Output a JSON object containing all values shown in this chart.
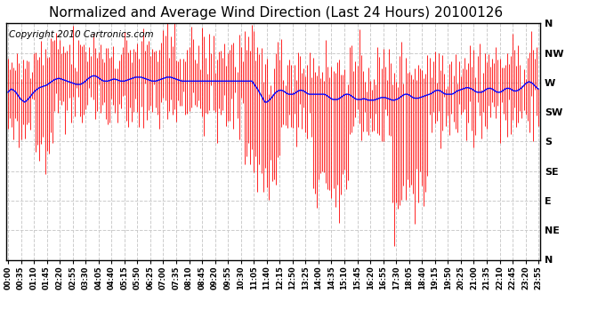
{
  "title": "Normalized and Average Wind Direction (Last 24 Hours) 20100126",
  "copyright": "Copyright 2010 Cartronics.com",
  "background_color": "#ffffff",
  "plot_bg_color": "#ffffff",
  "grid_color": "#cccccc",
  "bar_color": "#ff0000",
  "line_color": "#0000ff",
  "ytick_labels": [
    "N",
    "NW",
    "W",
    "SW",
    "S",
    "SE",
    "E",
    "NE",
    "N"
  ],
  "ytick_values": [
    360,
    315,
    270,
    225,
    180,
    135,
    90,
    45,
    0
  ],
  "ylim": [
    0,
    360
  ],
  "title_fontsize": 11,
  "copyright_fontsize": 7.5,
  "xtick_fontsize": 6,
  "ytick_fontsize": 8,
  "avg_wind_data": [
    255,
    258,
    260,
    258,
    256,
    252,
    248,
    244,
    242,
    240,
    242,
    245,
    248,
    252,
    255,
    258,
    260,
    262,
    263,
    264,
    265,
    266,
    268,
    270,
    272,
    274,
    275,
    276,
    276,
    275,
    274,
    273,
    272,
    271,
    270,
    269,
    268,
    267,
    267,
    267,
    268,
    270,
    272,
    275,
    277,
    279,
    280,
    280,
    279,
    277,
    275,
    273,
    272,
    272,
    272,
    273,
    274,
    275,
    275,
    274,
    273,
    272,
    272,
    272,
    273,
    274,
    275,
    276,
    277,
    278,
    278,
    278,
    278,
    277,
    276,
    275,
    274,
    273,
    272,
    272,
    272,
    273,
    274,
    275,
    276,
    277,
    278,
    278,
    278,
    277,
    276,
    275,
    274,
    273,
    272,
    272,
    272,
    272,
    272,
    272,
    272,
    272,
    272,
    272,
    272,
    272,
    272,
    272,
    272,
    272,
    272,
    272,
    272,
    272,
    272,
    272,
    272,
    272,
    272,
    272,
    272,
    272,
    272,
    272,
    272,
    272,
    272,
    272,
    272,
    272,
    272,
    272,
    272,
    268,
    264,
    260,
    255,
    250,
    245,
    240,
    240,
    242,
    245,
    248,
    252,
    255,
    257,
    258,
    258,
    257,
    255,
    253,
    252,
    252,
    252,
    253,
    255,
    257,
    258,
    258,
    257,
    255,
    253,
    252,
    252,
    252,
    252,
    252,
    252,
    252,
    252,
    252,
    251,
    249,
    247,
    245,
    244,
    244,
    244,
    245,
    247,
    249,
    251,
    252,
    252,
    251,
    249,
    247,
    245,
    244,
    244,
    244,
    245,
    245,
    244,
    243,
    243,
    243,
    243,
    244,
    245,
    246,
    247,
    247,
    247,
    246,
    245,
    244,
    243,
    243,
    244,
    245,
    247,
    249,
    251,
    252,
    252,
    251,
    249,
    247,
    246,
    246,
    246,
    247,
    248,
    249,
    250,
    251,
    252,
    253,
    255,
    257,
    258,
    258,
    257,
    255,
    253,
    252,
    252,
    252,
    252,
    253,
    255,
    257,
    258,
    259,
    260,
    261,
    262,
    262,
    261,
    260,
    258,
    256,
    255,
    255,
    255,
    256,
    258,
    260,
    261,
    261,
    260,
    258,
    256,
    255,
    255,
    256,
    258,
    260,
    261,
    261,
    260,
    258,
    257,
    257,
    258,
    260,
    262,
    265,
    268,
    270,
    271,
    270,
    268,
    265,
    262,
    260
  ]
}
